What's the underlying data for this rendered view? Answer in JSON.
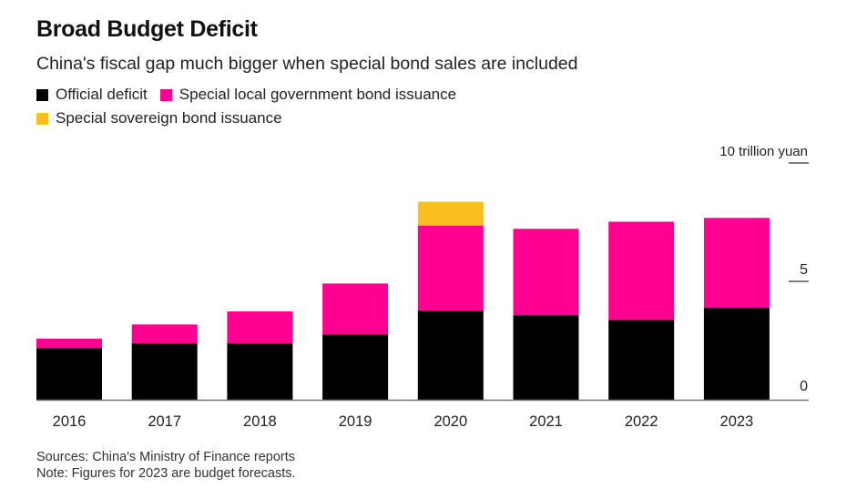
{
  "chart_data": {
    "type": "bar",
    "stacked": true,
    "title": "Broad Budget Deficit",
    "subtitle": "China's fiscal gap much bigger when special bond sales are included",
    "unit_label": "10 trillion yuan",
    "xlabel": "",
    "ylabel": "trillion yuan",
    "ylim": [
      0,
      10
    ],
    "yticks": [
      0,
      5,
      10
    ],
    "ytick_labels": [
      "0",
      "5",
      "10 trillion yuan"
    ],
    "grid": false,
    "legend_position": "top-left",
    "categories": [
      "2016",
      "2017",
      "2018",
      "2019",
      "2020",
      "2021",
      "2022",
      "2023"
    ],
    "series": [
      {
        "name": "Official deficit",
        "color": "#000000",
        "values": [
          2.18,
          2.38,
          2.38,
          2.76,
          3.76,
          3.57,
          3.37,
          3.88
        ]
      },
      {
        "name": "Special local government bond issuance",
        "color": "#ff0090",
        "values": [
          0.4,
          0.8,
          1.35,
          2.15,
          3.6,
          3.65,
          4.15,
          3.8
        ]
      },
      {
        "name": "Special sovereign bond issuance",
        "color": "#f9bf1e",
        "values": [
          0,
          0,
          0,
          0,
          1.0,
          0,
          0,
          0
        ]
      }
    ],
    "sources": "Sources: China's Ministry of Finance reports",
    "note": "Note: Figures for 2023 are budget forecasts."
  }
}
